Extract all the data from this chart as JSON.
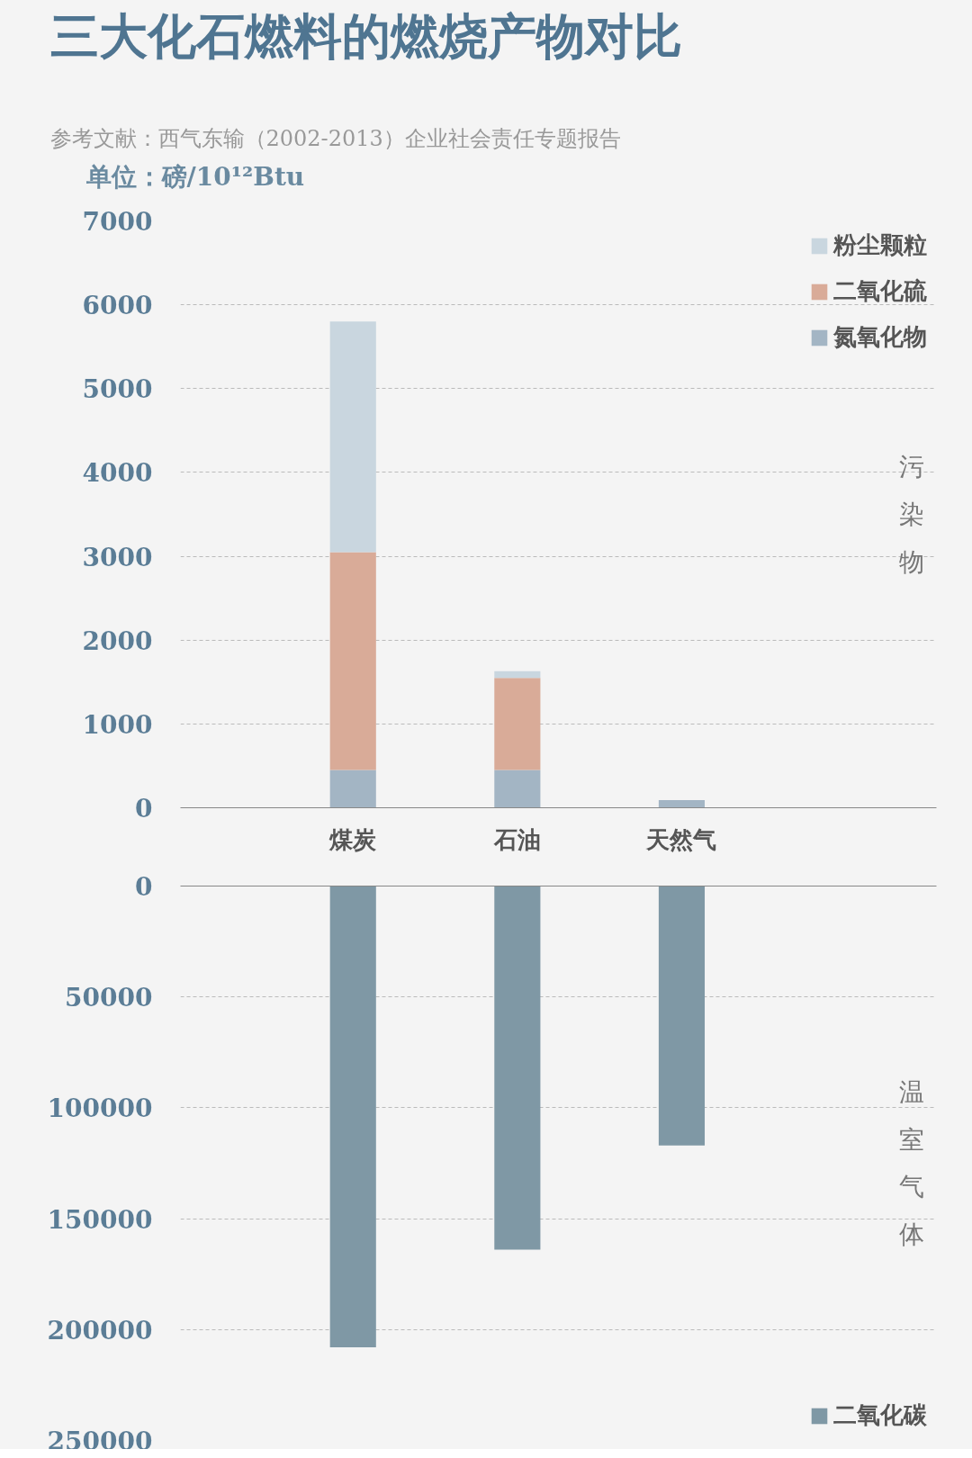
{
  "chart_data": [
    {
      "type": "bar",
      "title": "三大化石燃料的燃烧产物对比",
      "subtitle": "参考文献：西气东输（2002-2013）企业社会责任专题报告",
      "ylabel": "单位：磅/10¹²Btu",
      "categories": [
        "煤炭",
        "石油",
        "天然气"
      ],
      "stacked": true,
      "series": [
        {
          "name": "氮氧化物",
          "color": "#a3b5c4",
          "values": [
            450,
            450,
            90
          ]
        },
        {
          "name": "二氧化硫",
          "color": "#d9ab98",
          "values": [
            2600,
            1100,
            null
          ]
        },
        {
          "name": "粉尘颗粒",
          "color": "#c9d6df",
          "values": [
            2750,
            80,
            null
          ]
        }
      ],
      "ylim": [
        0,
        7000
      ],
      "yticks": [
        0,
        1000,
        2000,
        3000,
        4000,
        5000,
        6000,
        7000
      ],
      "grid": "y",
      "legend": "top right",
      "annotations": [
        "污染物"
      ]
    },
    {
      "type": "bar",
      "categories": [
        null,
        null,
        null
      ],
      "series": [
        {
          "name": "二氧化碳",
          "color": "#7f98a5",
          "values": [
            208000,
            164000,
            117000
          ]
        }
      ],
      "ylim": [
        250000,
        0
      ],
      "yticks": [
        0,
        50000,
        100000,
        150000,
        200000,
        250000
      ],
      "grid": "y",
      "legend": "bottom right",
      "tick_labels": "y",
      "annotations": [
        "温室气体"
      ]
    }
  ]
}
